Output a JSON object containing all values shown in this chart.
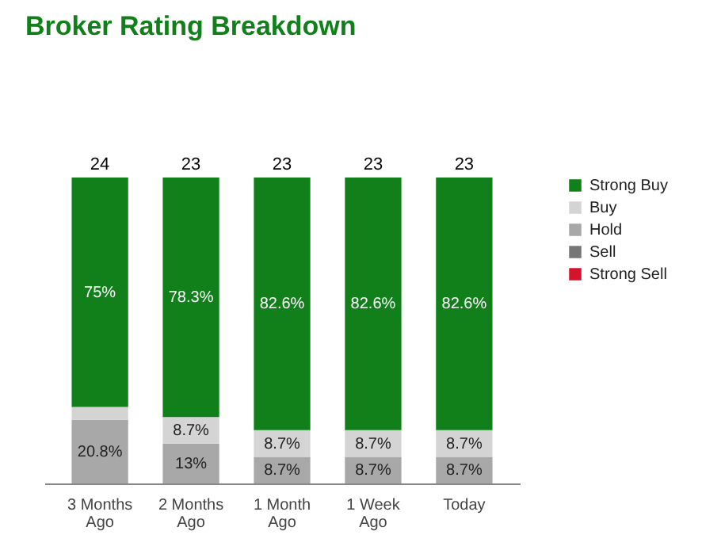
{
  "chart_data": {
    "type": "bar",
    "title": "Broker Rating Breakdown",
    "stacked": true,
    "legend": "right",
    "categories": [
      "3 Months Ago",
      "2 Months Ago",
      "1 Month Ago",
      "1 Week Ago",
      "Today"
    ],
    "series": [
      {
        "name": "Strong Sell",
        "color": "#d5132b",
        "values": [
          null,
          null,
          null,
          null,
          null
        ]
      },
      {
        "name": "Sell",
        "color": "#767676",
        "values": [
          null,
          null,
          null,
          null,
          null
        ]
      },
      {
        "name": "Hold",
        "color": "#a8a8a8",
        "values": [
          20.8,
          13,
          8.7,
          8.7,
          8.7
        ],
        "value_labels": [
          "20.8%",
          "13%",
          "8.7%",
          "8.7%",
          "8.7%"
        ]
      },
      {
        "name": "Buy",
        "color": "#d4d4d4",
        "values": [
          4.2,
          8.7,
          8.7,
          8.7,
          8.7
        ],
        "value_labels": [
          null,
          "8.7%",
          "8.7%",
          "8.7%",
          "8.7%"
        ]
      },
      {
        "name": "Strong Buy",
        "color": "#11801a",
        "values": [
          75,
          78.3,
          82.6,
          82.6,
          82.6
        ],
        "value_labels": [
          "75%",
          "78.3%",
          "82.6%",
          "82.6%",
          "82.6%"
        ]
      }
    ],
    "annotations": [
      {
        "text": "24",
        "x": "3 Months Ago",
        "y": 100
      },
      {
        "text": "23",
        "x": "2 Months Ago",
        "y": 100
      },
      {
        "text": "23",
        "x": "1 Month Ago",
        "y": 100
      },
      {
        "text": "23",
        "x": "1 Week Ago",
        "y": 100
      },
      {
        "text": "23",
        "x": "Today",
        "y": 100
      }
    ]
  }
}
